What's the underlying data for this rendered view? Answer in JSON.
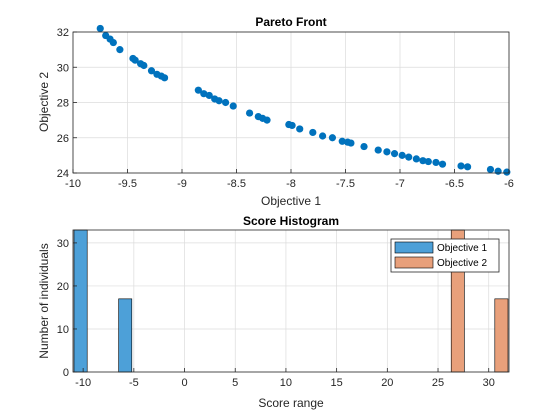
{
  "chart_data": [
    {
      "type": "scatter",
      "title": "Pareto Front",
      "xlabel": "Objective 1",
      "ylabel": "Objective 2",
      "xlim": [
        -10,
        -6
      ],
      "ylim": [
        24,
        32
      ],
      "xticks": [
        -10,
        -9.5,
        -9,
        -8.5,
        -8,
        -7.5,
        -7,
        -6.5,
        -6
      ],
      "xtick_labels": [
        "-10",
        "-9.5",
        "-9",
        "-8.5",
        "-8",
        "-7.5",
        "-7",
        "-6.5",
        "-6"
      ],
      "yticks": [
        24,
        26,
        28,
        30,
        32
      ],
      "ytick_labels": [
        "24",
        "26",
        "28",
        "30",
        "32"
      ],
      "grid": true,
      "color": "#0072BD",
      "x": [
        -9.75,
        -9.7,
        -9.66,
        -9.63,
        -9.57,
        -9.45,
        -9.43,
        -9.38,
        -9.35,
        -9.28,
        -9.23,
        -9.19,
        -9.16,
        -8.85,
        -8.8,
        -8.75,
        -8.7,
        -8.66,
        -8.6,
        -8.53,
        -8.38,
        -8.3,
        -8.26,
        -8.22,
        -8.02,
        -7.99,
        -7.92,
        -7.8,
        -7.71,
        -7.62,
        -7.53,
        -7.48,
        -7.45,
        -7.33,
        -7.2,
        -7.12,
        -7.05,
        -6.98,
        -6.92,
        -6.85,
        -6.79,
        -6.74,
        -6.67,
        -6.61,
        -6.44,
        -6.38,
        -6.17,
        -6.1,
        -6.02
      ],
      "y": [
        32.2,
        31.8,
        31.6,
        31.4,
        31.0,
        30.5,
        30.4,
        30.2,
        30.1,
        29.8,
        29.6,
        29.5,
        29.4,
        28.7,
        28.5,
        28.4,
        28.2,
        28.1,
        28.0,
        27.8,
        27.4,
        27.2,
        27.1,
        27.0,
        26.75,
        26.7,
        26.5,
        26.3,
        26.1,
        26.0,
        25.8,
        25.75,
        25.7,
        25.5,
        25.3,
        25.2,
        25.1,
        25.0,
        24.9,
        24.8,
        24.7,
        24.65,
        24.6,
        24.5,
        24.4,
        24.35,
        24.2,
        24.1,
        24.05
      ]
    },
    {
      "type": "bar",
      "title": "Score Histogram",
      "xlabel": "Score range",
      "ylabel": "Number of individuals",
      "xlim": [
        -11,
        32
      ],
      "ylim": [
        0,
        33
      ],
      "xticks": [
        -10,
        -5,
        0,
        5,
        10,
        15,
        20,
        25,
        30
      ],
      "xtick_labels": [
        "-10",
        "-5",
        "0",
        "5",
        "10",
        "15",
        "20",
        "25",
        "30"
      ],
      "yticks": [
        0,
        10,
        20,
        30
      ],
      "ytick_labels": [
        "0",
        "10",
        "20",
        "30"
      ],
      "grid": true,
      "legend": "top-right",
      "series": [
        {
          "name": "Objective 1",
          "color": "#4DA0D8",
          "bars": [
            {
              "x0": -10.9,
              "x1": -9.6,
              "value": 33
            },
            {
              "x0": -6.5,
              "x1": -5.2,
              "value": 17
            }
          ]
        },
        {
          "name": "Objective 2",
          "color": "#E8A07B",
          "bars": [
            {
              "x0": 26.3,
              "x1": 27.6,
              "value": 33
            },
            {
              "x0": 30.6,
              "x1": 31.9,
              "value": 17
            }
          ]
        }
      ]
    }
  ]
}
